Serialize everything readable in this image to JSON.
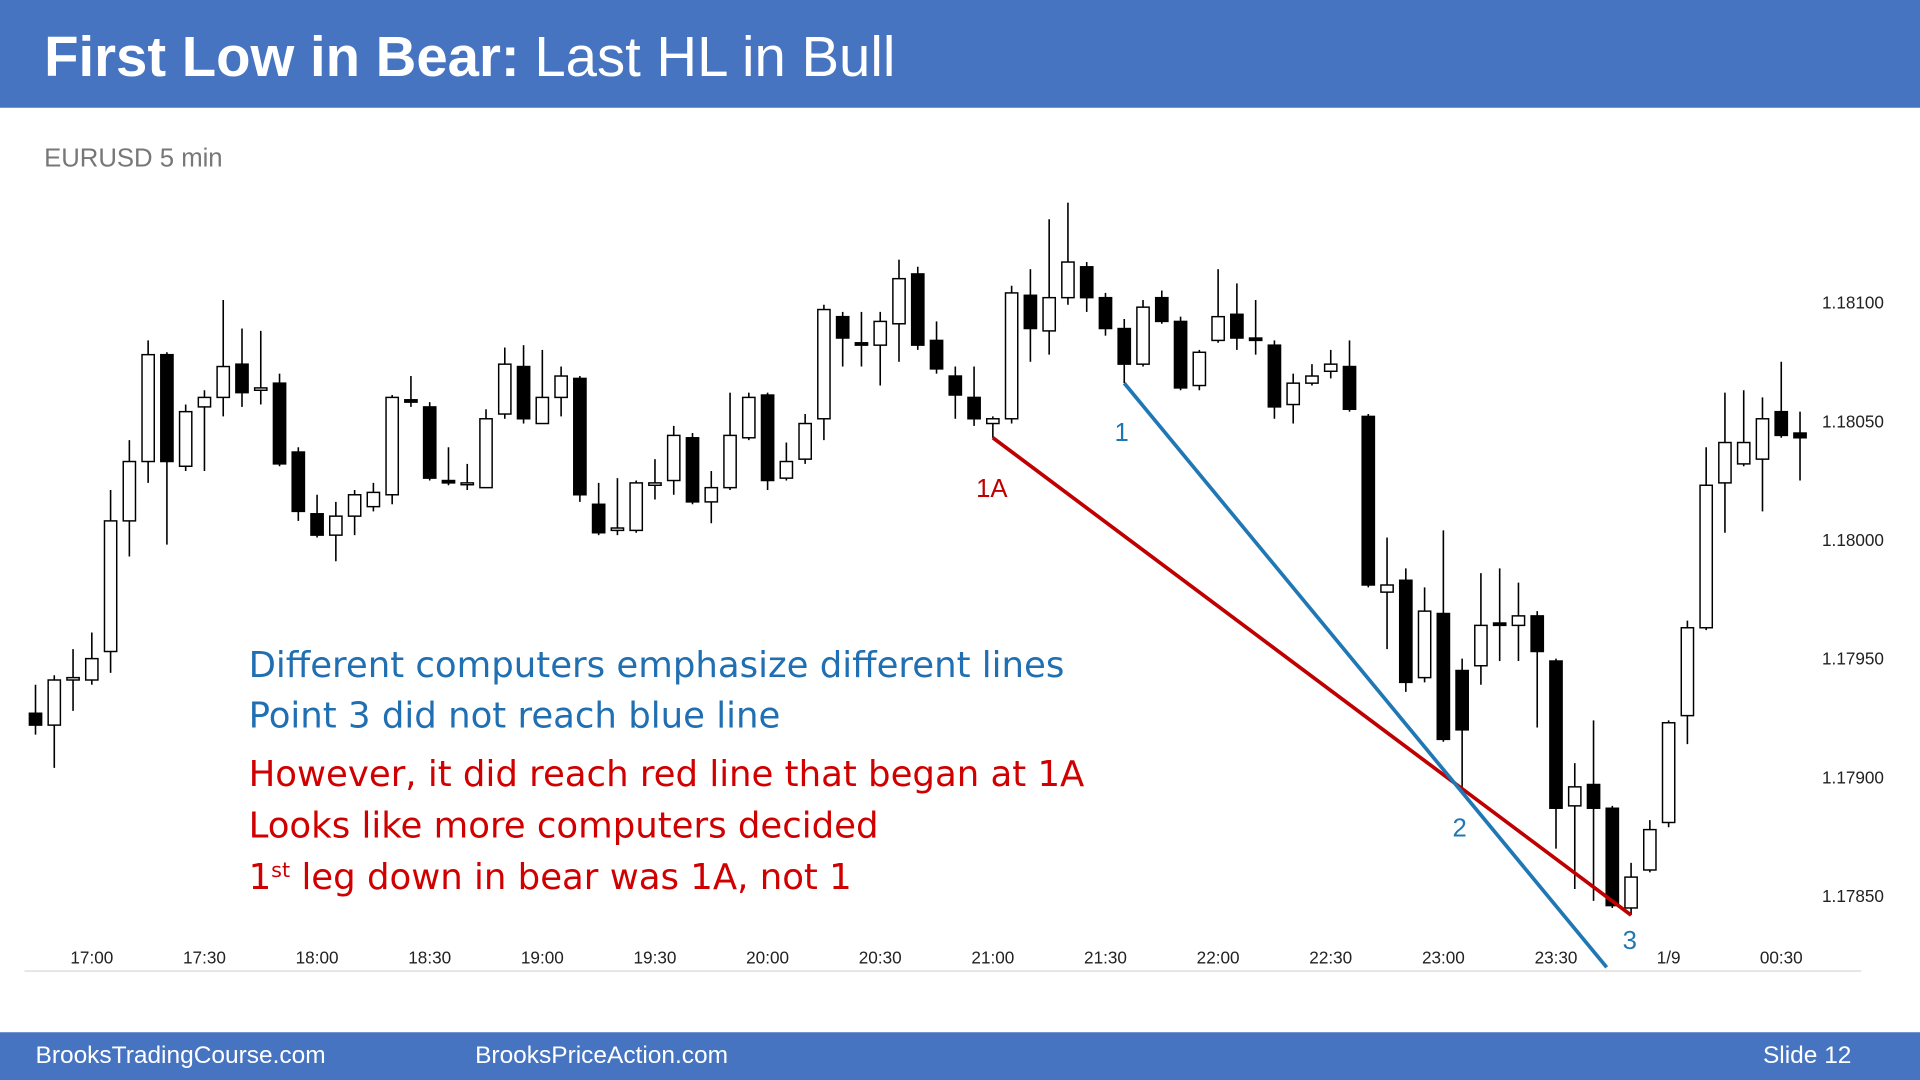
{
  "chart_data": {
    "type": "candlestick",
    "title": [
      "First Low in Bear:",
      "Last HL in Bull"
    ],
    "subtitle": "EURUSD 5 min",
    "categories": [
      null,
      null,
      null,
      "17:00",
      null,
      null,
      null,
      null,
      null,
      "17:30",
      null,
      null,
      null,
      null,
      null,
      "18:00",
      null,
      null,
      null,
      null,
      null,
      "18:30",
      null,
      null,
      null,
      null,
      null,
      "19:00",
      null,
      null,
      null,
      null,
      null,
      "19:30",
      null,
      null,
      null,
      null,
      null,
      "20:00",
      null,
      null,
      null,
      null,
      null,
      "20:30",
      null,
      null,
      null,
      null,
      null,
      "21:00",
      null,
      null,
      null,
      null,
      null,
      "21:30",
      null,
      null,
      null,
      null,
      null,
      "22:00",
      null,
      null,
      null,
      null,
      null,
      "22:30",
      null,
      null,
      null,
      null,
      null,
      "23:00",
      null,
      null,
      null,
      null,
      null,
      "23:30",
      null,
      null,
      null,
      null,
      null,
      "1/9",
      null,
      null,
      null,
      null,
      null,
      "00:30",
      null
    ],
    "open": [
      1.17927,
      1.17922,
      1.17941,
      1.17941,
      1.17953,
      1.18008,
      1.18033,
      1.18078,
      1.18031,
      1.18056,
      1.1806,
      1.18074,
      1.18063,
      1.18066,
      1.18037,
      1.18011,
      1.18002,
      1.1801,
      1.18014,
      1.18019,
      1.18059,
      1.18056,
      1.18025,
      1.18024,
      1.18022,
      1.18053,
      1.18073,
      1.18049,
      1.1806,
      1.18068,
      1.18015,
      1.18004,
      1.18004,
      1.18023,
      1.18025,
      1.18043,
      1.18016,
      1.18022,
      1.18043,
      1.18061,
      1.18026,
      1.18034,
      1.18051,
      1.18094,
      1.18083,
      1.18082,
      1.18091,
      1.18112,
      1.18084,
      1.18069,
      1.1806,
      1.18049,
      1.18051,
      1.18103,
      1.18088,
      1.18102,
      1.18115,
      1.18102,
      1.18089,
      1.18074,
      1.18102,
      1.18092,
      1.18065,
      1.18084,
      1.18095,
      1.18085,
      1.18082,
      1.18057,
      1.18066,
      1.18071,
      1.18073,
      1.18052,
      1.17978,
      1.17983,
      1.17942,
      1.17969,
      1.17945,
      1.17947,
      1.17965,
      1.17964,
      1.17968,
      1.17949,
      1.17888,
      1.17897,
      1.17887,
      1.17845,
      1.17861,
      1.17881,
      1.17926,
      1.17963,
      1.18024,
      1.18032,
      1.18034,
      1.18054,
      1.18045
    ],
    "high": [
      1.17939,
      1.17943,
      1.17954,
      1.17961,
      1.18021,
      1.18042,
      1.18084,
      1.18079,
      1.18057,
      1.18063,
      1.18101,
      1.18089,
      1.18088,
      1.1807,
      1.18039,
      1.18019,
      1.18016,
      1.18021,
      1.18024,
      1.18061,
      1.18069,
      1.18058,
      1.18039,
      1.18032,
      1.18055,
      1.18081,
      1.18082,
      1.1808,
      1.18073,
      1.18069,
      1.18024,
      1.18026,
      1.18025,
      1.18034,
      1.18048,
      1.18045,
      1.18029,
      1.18062,
      1.18062,
      1.18062,
      1.18041,
      1.18053,
      1.18099,
      1.18096,
      1.18096,
      1.18096,
      1.18118,
      1.18115,
      1.18092,
      1.18073,
      1.18073,
      1.18052,
      1.18107,
      1.18114,
      1.18135,
      1.18142,
      1.18117,
      1.18104,
      1.18093,
      1.18101,
      1.18105,
      1.18094,
      1.1808,
      1.18114,
      1.18108,
      1.18101,
      1.18084,
      1.1807,
      1.18074,
      1.1808,
      1.18084,
      1.18053,
      1.18001,
      1.17988,
      1.1798,
      1.18004,
      1.1795,
      1.17986,
      1.17988,
      1.17982,
      1.1797,
      1.1795,
      1.17906,
      1.17924,
      1.17888,
      1.17864,
      1.17882,
      1.17924,
      1.17966,
      1.18039,
      1.18062,
      1.18063,
      1.1806,
      1.18075,
      1.18054
    ],
    "low": [
      1.17918,
      1.17904,
      1.17928,
      1.17939,
      1.17944,
      1.17993,
      1.18024,
      1.17998,
      1.18029,
      1.18029,
      1.18052,
      1.18056,
      1.18057,
      1.18031,
      1.18008,
      1.18001,
      1.17991,
      1.18002,
      1.18012,
      1.18015,
      1.18056,
      1.18025,
      1.18023,
      1.18021,
      1.18022,
      1.18051,
      1.18049,
      1.18049,
      1.18052,
      1.18016,
      1.18002,
      1.18002,
      1.18003,
      1.18017,
      1.18019,
      1.18015,
      1.18007,
      1.18021,
      1.18042,
      1.18021,
      1.18025,
      1.18032,
      1.18042,
      1.18073,
      1.18073,
      1.18065,
      1.18075,
      1.1808,
      1.1807,
      1.18051,
      1.18048,
      1.18043,
      1.18049,
      1.18075,
      1.18078,
      1.18099,
      1.18096,
      1.18086,
      1.18066,
      1.18073,
      1.18091,
      1.18063,
      1.18063,
      1.18083,
      1.1808,
      1.18078,
      1.18051,
      1.18049,
      1.18065,
      1.18068,
      1.18054,
      1.1798,
      1.17954,
      1.17936,
      1.1794,
      1.17915,
      1.17895,
      1.17939,
      1.17949,
      1.17949,
      1.17921,
      1.1787,
      1.17853,
      1.17848,
      1.17845,
      1.17842,
      1.1786,
      1.17879,
      1.17914,
      1.17962,
      1.18003,
      1.18031,
      1.18012,
      1.18043,
      1.18025
    ],
    "close": [
      1.17922,
      1.17941,
      1.17942,
      1.1795,
      1.18008,
      1.18033,
      1.18078,
      1.18033,
      1.18054,
      1.1806,
      1.18073,
      1.18062,
      1.18064,
      1.18032,
      1.18012,
      1.18002,
      1.1801,
      1.18019,
      1.1802,
      1.1806,
      1.18058,
      1.18026,
      1.18024,
      1.18024,
      1.18051,
      1.18074,
      1.18051,
      1.1806,
      1.18069,
      1.18019,
      1.18003,
      1.18005,
      1.18024,
      1.18024,
      1.18044,
      1.18016,
      1.18022,
      1.18044,
      1.1806,
      1.18025,
      1.18033,
      1.18049,
      1.18097,
      1.18085,
      1.18082,
      1.18092,
      1.1811,
      1.18082,
      1.18072,
      1.18061,
      1.18051,
      1.18051,
      1.18104,
      1.18089,
      1.18102,
      1.18117,
      1.18102,
      1.18089,
      1.18074,
      1.18098,
      1.18092,
      1.18064,
      1.18079,
      1.18094,
      1.18085,
      1.18084,
      1.18056,
      1.18066,
      1.18069,
      1.18074,
      1.18055,
      1.17981,
      1.17981,
      1.1794,
      1.1797,
      1.17916,
      1.1792,
      1.17964,
      1.17964,
      1.17968,
      1.17953,
      1.17887,
      1.17896,
      1.17887,
      1.17846,
      1.17858,
      1.17878,
      1.17923,
      1.17963,
      1.18023,
      1.18041,
      1.18041,
      1.18051,
      1.18044,
      1.18043
    ],
    "up_color": "#ffffff",
    "down_color": "#000000",
    "ylim": [
      1.1782,
      1.1815
    ],
    "yticks": [
      {
        "value": 1.1785,
        "label": "1.17850"
      },
      {
        "value": 1.179,
        "label": "1.17900"
      },
      {
        "value": 1.1795,
        "label": "1.17950"
      },
      {
        "value": 1.18,
        "label": "1.18000"
      },
      {
        "value": 1.1805,
        "label": "1.18050"
      },
      {
        "value": 1.181,
        "label": "1.18100"
      }
    ],
    "grid": false,
    "lines": [
      {
        "color": "#c00000",
        "from": {
          "x": 51,
          "y": 1.18043
        },
        "to": {
          "x": 85,
          "y": 1.17842
        }
      },
      {
        "color": "#1f77b4",
        "from": {
          "x": 58,
          "y": 1.18066
        },
        "to": {
          "x": 83.7,
          "y": 1.1782
        }
      }
    ],
    "annotations": [
      {
        "text": "1A",
        "color": "#c00000"
      },
      {
        "text": "1",
        "color": "#1f77b4"
      },
      {
        "text": "2",
        "color": "#1f77b4"
      },
      {
        "text": "3",
        "color": "#1f77b4"
      }
    ],
    "notes": [
      {
        "parts": [
          "Different computers emphasize different lines"
        ],
        "color": "#1f6fb2"
      },
      {
        "parts": [
          "Point 3 did not reach blue line"
        ],
        "color": "#1f6fb2"
      },
      {
        "parts": [
          "However,  it did reach red line that began at 1A"
        ],
        "color": "#d00000"
      },
      {
        "parts": [
          "Looks like more computers decided"
        ],
        "color": "#d00000"
      },
      {
        "parts": [
          "1",
          "st",
          " leg down in bear was 1A, not 1"
        ],
        "color": "#d00000"
      }
    ]
  },
  "footer": {
    "left": "BrooksTradingCourse.com",
    "center": "BrooksPriceAction.com",
    "right": "Slide  12"
  }
}
